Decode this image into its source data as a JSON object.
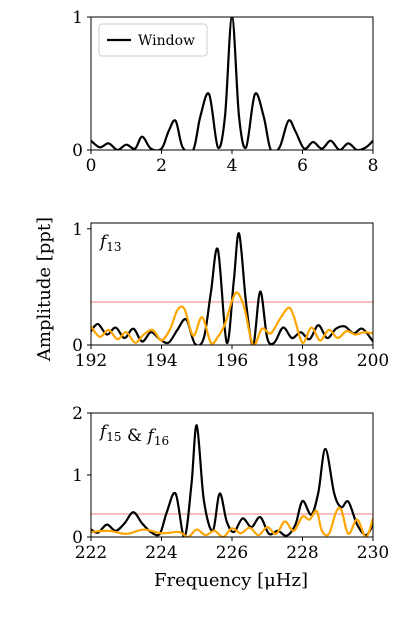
{
  "figure": {
    "ylabel": "Amplitude [ppt]",
    "xlabel": "Frequency [μHz]",
    "colors": {
      "window": "#000000",
      "data": "#000000",
      "residual": "#FFA500",
      "threshold": "#F08080"
    }
  },
  "chart_data": [
    {
      "type": "line",
      "panel": "top",
      "title": "",
      "legend": {
        "placement": "top-left",
        "entries": [
          "Window"
        ]
      },
      "xlim": [
        0,
        8
      ],
      "ylim": [
        0,
        1
      ],
      "xticks": [
        "0",
        "2",
        "4",
        "6",
        "8"
      ],
      "yticks": [
        "0",
        "1"
      ],
      "grid": false,
      "series": [
        {
          "name": "Window",
          "color": "#000000",
          "x": [
            0,
            0.25,
            0.5,
            0.75,
            1.0,
            1.25,
            1.45,
            1.7,
            2.0,
            2.2,
            2.4,
            2.6,
            2.9,
            3.1,
            3.35,
            3.6,
            3.8,
            4.0,
            4.2,
            4.4,
            4.65,
            4.9,
            5.1,
            5.35,
            5.6,
            5.8,
            6.05,
            6.3,
            6.55,
            6.8,
            7.05,
            7.3,
            7.55,
            7.8,
            8.0
          ],
          "y": [
            0.07,
            0.02,
            0.05,
            0.0,
            0.04,
            0.01,
            0.1,
            0.01,
            0.01,
            0.14,
            0.22,
            0.02,
            0.0,
            0.25,
            0.42,
            0.02,
            0.25,
            1.0,
            0.25,
            0.02,
            0.42,
            0.25,
            0.0,
            0.02,
            0.22,
            0.14,
            0.01,
            0.06,
            0.01,
            0.07,
            0.0,
            0.05,
            0.0,
            0.02,
            0.07
          ]
        }
      ]
    },
    {
      "type": "line",
      "panel": "middle",
      "annotation": "f13",
      "xlim": [
        192,
        200
      ],
      "ylim": [
        0,
        1.05
      ],
      "xticks": [
        "192",
        "194",
        "196",
        "198",
        "200"
      ],
      "yticks": [
        "0",
        "1"
      ],
      "grid": false,
      "threshold": 0.37,
      "series": [
        {
          "color": "#000000",
          "x": [
            192,
            192.2,
            192.45,
            192.7,
            192.95,
            193.2,
            193.45,
            193.7,
            193.95,
            194.2,
            194.45,
            194.7,
            194.95,
            195.2,
            195.4,
            195.6,
            195.85,
            196.05,
            196.2,
            196.4,
            196.6,
            196.8,
            197.0,
            197.2,
            197.45,
            197.7,
            197.95,
            198.2,
            198.45,
            198.7,
            198.95,
            199.2,
            199.45,
            199.7,
            200
          ],
          "y": [
            0.12,
            0.18,
            0.09,
            0.15,
            0.06,
            0.14,
            0.03,
            0.11,
            0.05,
            0.02,
            0.13,
            0.22,
            0.01,
            0.06,
            0.45,
            0.82,
            0.02,
            0.55,
            0.96,
            0.36,
            0.0,
            0.46,
            0.06,
            0.02,
            0.15,
            0.06,
            0.11,
            0.05,
            0.17,
            0.06,
            0.14,
            0.16,
            0.1,
            0.14,
            0.03
          ]
        },
        {
          "color": "#FFA500",
          "x": [
            192,
            192.25,
            192.5,
            192.75,
            193.0,
            193.25,
            193.5,
            193.75,
            194.0,
            194.25,
            194.45,
            194.65,
            194.9,
            195.15,
            195.4,
            195.6,
            195.8,
            196.0,
            196.15,
            196.35,
            196.6,
            196.85,
            197.1,
            197.35,
            197.6,
            197.75,
            198.0,
            198.25,
            198.5,
            198.75,
            199.0,
            199.25,
            199.5,
            199.75,
            200
          ],
          "y": [
            0.16,
            0.07,
            0.13,
            0.05,
            0.11,
            0.02,
            0.09,
            0.13,
            0.04,
            0.14,
            0.3,
            0.31,
            0.08,
            0.24,
            0.02,
            0.07,
            0.18,
            0.38,
            0.45,
            0.32,
            0.0,
            0.14,
            0.1,
            0.22,
            0.32,
            0.25,
            0.02,
            0.15,
            0.04,
            0.13,
            0.06,
            0.12,
            0.09,
            0.11,
            0.1
          ]
        }
      ]
    },
    {
      "type": "line",
      "panel": "bottom",
      "annotation": "f15 & f16",
      "xlim": [
        222,
        230
      ],
      "ylim": [
        0,
        2
      ],
      "xticks": [
        "222",
        "224",
        "226",
        "228",
        "230"
      ],
      "yticks": [
        "0",
        "1",
        "2"
      ],
      "grid": false,
      "threshold": 0.37,
      "series": [
        {
          "color": "#000000",
          "x": [
            222,
            222.2,
            222.45,
            222.7,
            222.95,
            223.2,
            223.45,
            223.7,
            223.95,
            224.15,
            224.4,
            224.65,
            224.85,
            225.0,
            225.2,
            225.45,
            225.65,
            225.85,
            226.05,
            226.3,
            226.55,
            226.8,
            227.05,
            227.3,
            227.55,
            227.8,
            228.0,
            228.25,
            228.45,
            228.65,
            228.9,
            229.1,
            229.3,
            229.55,
            229.8,
            230
          ],
          "y": [
            0.12,
            0.07,
            0.2,
            0.1,
            0.22,
            0.4,
            0.22,
            0.08,
            0.05,
            0.4,
            0.7,
            0.0,
            0.85,
            1.8,
            0.6,
            0.1,
            0.7,
            0.25,
            0.08,
            0.3,
            0.16,
            0.32,
            0.05,
            0.1,
            0.02,
            0.2,
            0.58,
            0.36,
            0.72,
            1.42,
            0.7,
            0.48,
            0.57,
            0.2,
            0.03,
            0.2
          ]
        },
        {
          "color": "#FFA500",
          "x": [
            222,
            222.5,
            223,
            223.5,
            224,
            224.5,
            224.75,
            225,
            225.25,
            225.5,
            225.75,
            226,
            226.25,
            226.5,
            226.75,
            227,
            227.25,
            227.5,
            227.75,
            228,
            228.2,
            228.4,
            228.55,
            228.75,
            228.95,
            229.1,
            229.3,
            229.55,
            229.8,
            230
          ],
          "y": [
            0.08,
            0.1,
            0.05,
            0.12,
            0.06,
            0.08,
            0.0,
            0.12,
            0.03,
            0.1,
            0.0,
            0.14,
            0.06,
            0.15,
            0.03,
            0.16,
            0.05,
            0.25,
            0.1,
            0.33,
            0.28,
            0.42,
            0.1,
            0.05,
            0.4,
            0.44,
            0.05,
            0.28,
            0.0,
            0.3
          ]
        }
      ]
    }
  ]
}
